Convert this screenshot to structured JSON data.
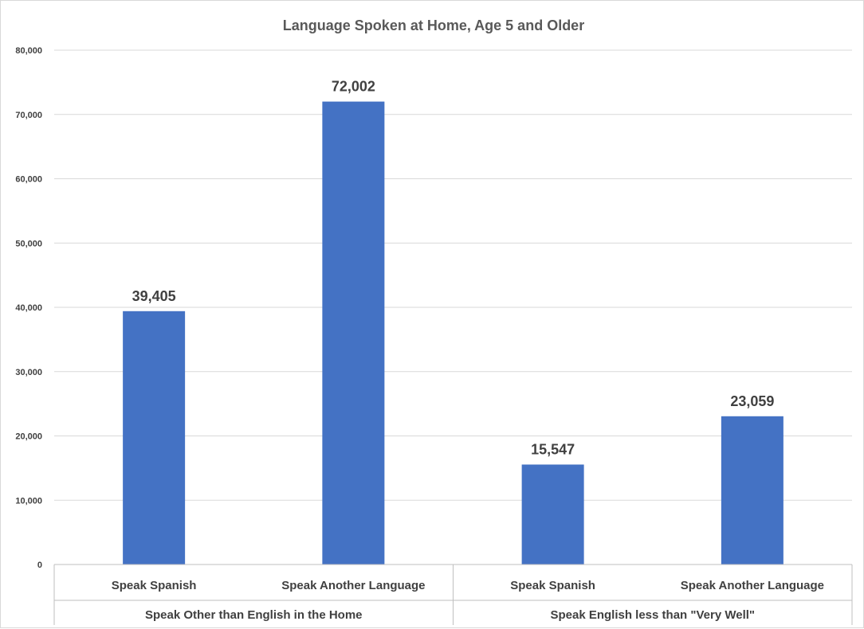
{
  "chart_data": {
    "type": "bar",
    "title": "Language Spoken at Home, Age 5 and Older",
    "xlabel": "",
    "ylabel": "",
    "ylim": [
      0,
      80000
    ],
    "y_ticks": [
      "0",
      "10,000",
      "20,000",
      "30,000",
      "40,000",
      "50,000",
      "60,000",
      "70,000",
      "80,000"
    ],
    "y_tick_values": [
      0,
      10000,
      20000,
      30000,
      40000,
      50000,
      60000,
      70000,
      80000
    ],
    "grid": true,
    "legend": "none",
    "color": "#4472c4",
    "categories": [
      "Speak Spanish",
      "Speak Another Language",
      "Speak Spanish",
      "Speak Another Language"
    ],
    "groups": [
      {
        "label": "Speak Other than English in the Home",
        "category_indices": [
          0,
          1
        ]
      },
      {
        "label": "Speak English less than \"Very Well\"",
        "category_indices": [
          2,
          3
        ]
      }
    ],
    "values": [
      39405,
      72002,
      15547,
      23059
    ],
    "data_labels": [
      "39,405",
      "72,002",
      "15,547",
      "23,059"
    ]
  }
}
